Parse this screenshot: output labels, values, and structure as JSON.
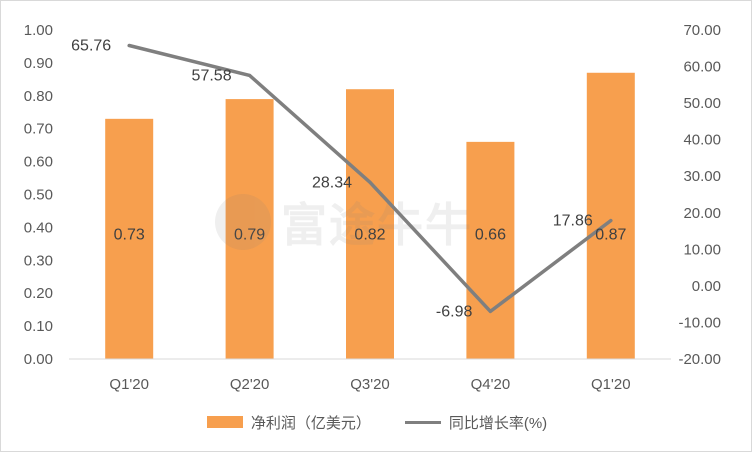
{
  "chart_data": {
    "type": "bar",
    "categories": [
      "Q1'20",
      "Q2'20",
      "Q3'20",
      "Q4'20",
      "Q1'20"
    ],
    "series": [
      {
        "name": "净利润（亿美元）",
        "type": "bar",
        "axis": "left",
        "values": [
          0.73,
          0.79,
          0.82,
          0.66,
          0.87
        ],
        "labels": [
          "0.73",
          "0.79",
          "0.82",
          "0.66",
          "0.87"
        ]
      },
      {
        "name": "同比增长率(%)",
        "type": "line",
        "axis": "right",
        "values": [
          65.76,
          57.58,
          28.34,
          -6.98,
          17.86
        ],
        "labels": [
          "65.76",
          "57.58",
          "28.34",
          "-6.98",
          "17.86"
        ]
      }
    ],
    "ylim_left": [
      0,
      1.0
    ],
    "ylim_right": [
      -20,
      70
    ],
    "yticks_left": [
      "0.00",
      "0.10",
      "0.20",
      "0.30",
      "0.40",
      "0.50",
      "0.60",
      "0.70",
      "0.80",
      "0.90",
      "1.00"
    ],
    "yticks_right": [
      "-20.00",
      "-10.00",
      "0.00",
      "10.00",
      "20.00",
      "30.00",
      "40.00",
      "50.00",
      "60.00",
      "70.00"
    ],
    "grid": false,
    "legend_position": "bottom",
    "colors": {
      "bar": "#F79F4E",
      "line": "#7F7F7F",
      "text": "#595959",
      "axis": "#D9D9D9"
    }
  },
  "watermark": {
    "text": "富途牛牛",
    "icon": "futu-logo-icon"
  }
}
